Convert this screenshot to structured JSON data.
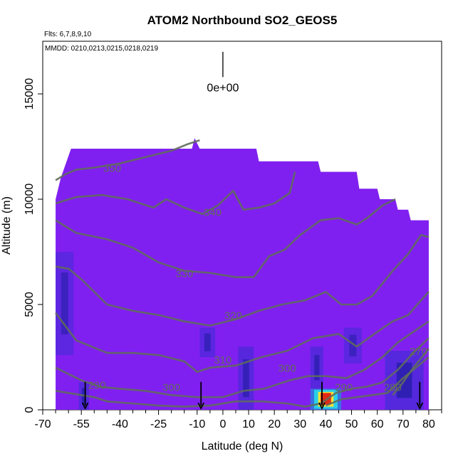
{
  "chart_data": {
    "type": "heatmap",
    "title": "ATOM2 Northbound SO2_GEOS5",
    "flights_note": "Flts: 6,7,8,9,10",
    "dates_note": "MMDD: 0210,0213,0215,0218,0219",
    "xlabel": "Latitude (deg N)",
    "ylabel": "Altitude (m)",
    "xlim": [
      -70,
      85
    ],
    "ylim": [
      0,
      17500
    ],
    "x_ticks": [
      -70,
      -55,
      -40,
      -25,
      -10,
      0,
      10,
      20,
      30,
      40,
      50,
      60,
      70,
      80
    ],
    "x_tick_labels": [
      "-70",
      "-55",
      "-40",
      "-25",
      "-10",
      "0",
      "10",
      "20",
      "30",
      "40",
      "50",
      "60",
      "70",
      "80"
    ],
    "x_minor_ticks": [
      -65,
      -60,
      -50,
      -45,
      -35,
      -30,
      -20,
      -15,
      -5,
      5,
      15,
      25,
      35,
      45,
      55,
      65,
      75,
      85
    ],
    "y_ticks": [
      0,
      5000,
      10000,
      15000
    ],
    "y_tick_labels": [
      "0",
      "5000",
      "10000",
      "15000"
    ],
    "colorbar_label": "0e+00",
    "background_color": "#8020f0",
    "data_top_profile": [
      {
        "lat": -65,
        "alt": 10000
      },
      {
        "lat": -63,
        "alt": 11000
      },
      {
        "lat": -61,
        "alt": 11700
      },
      {
        "lat": -59,
        "alt": 12400
      },
      {
        "lat": -24,
        "alt": 12400
      },
      {
        "lat": -12,
        "alt": 12400
      },
      {
        "lat": -11,
        "alt": 12900
      },
      {
        "lat": -9,
        "alt": 12400
      },
      {
        "lat": 13,
        "alt": 12400
      },
      {
        "lat": 14,
        "alt": 11800
      },
      {
        "lat": 37,
        "alt": 11800
      },
      {
        "lat": 38,
        "alt": 11300
      },
      {
        "lat": 52,
        "alt": 11300
      },
      {
        "lat": 53,
        "alt": 10500
      },
      {
        "lat": 60,
        "alt": 10500
      },
      {
        "lat": 61,
        "alt": 10000
      },
      {
        "lat": 67,
        "alt": 10000
      },
      {
        "lat": 68,
        "alt": 9500
      },
      {
        "lat": 72,
        "alt": 9500
      },
      {
        "lat": 73,
        "alt": 9000
      },
      {
        "lat": 80,
        "alt": 9000
      }
    ],
    "hotspots": [
      {
        "lat": [
          34,
          46
        ],
        "alt": [
          0,
          1000
        ],
        "intensity": 1.0
      },
      {
        "lat": [
          -56,
          -52
        ],
        "alt": [
          0,
          1300
        ],
        "intensity": 0.35
      },
      {
        "lat": [
          6,
          12
        ],
        "alt": [
          0,
          3000
        ],
        "intensity": 0.3
      },
      {
        "lat": [
          -9,
          -3
        ],
        "alt": [
          2500,
          3900
        ],
        "intensity": 0.25
      },
      {
        "lat": [
          34,
          39
        ],
        "alt": [
          1000,
          3000
        ],
        "intensity": 0.3
      },
      {
        "lat": [
          63,
          78
        ],
        "alt": [
          0,
          2800
        ],
        "intensity": 0.35
      },
      {
        "lat": [
          -65,
          -58
        ],
        "alt": [
          2600,
          7500
        ],
        "intensity": 0.2
      },
      {
        "lat": [
          47,
          54
        ],
        "alt": [
          2200,
          3900
        ],
        "intensity": 0.2
      }
    ],
    "contour_lines": [
      {
        "level": 350,
        "points": [
          [
            -65,
            10900
          ],
          [
            -61,
            11200
          ],
          [
            -57,
            11400
          ],
          [
            -50,
            11500
          ],
          [
            -40,
            11700
          ],
          [
            -30,
            12000
          ],
          [
            -20,
            12300
          ],
          [
            -14,
            12600
          ],
          [
            -9,
            12800
          ]
        ]
      },
      {
        "level": 340,
        "points": [
          [
            -65,
            9800
          ],
          [
            -57,
            10100
          ],
          [
            -47,
            10200
          ],
          [
            -37,
            10000
          ],
          [
            -27,
            9600
          ],
          [
            -22,
            10000
          ],
          [
            -15,
            9600
          ],
          [
            -8,
            9300
          ],
          [
            -2,
            9700
          ],
          [
            4,
            10400
          ],
          [
            8,
            9500
          ],
          [
            14,
            9600
          ],
          [
            20,
            9800
          ],
          [
            26,
            10300
          ],
          [
            28,
            11300
          ]
        ]
      },
      {
        "level": 330,
        "points": [
          [
            -65,
            9000
          ],
          [
            -57,
            8400
          ],
          [
            -45,
            8100
          ],
          [
            -35,
            7700
          ],
          [
            -25,
            7000
          ],
          [
            -15,
            6600
          ],
          [
            -5,
            6500
          ],
          [
            5,
            6300
          ],
          [
            12,
            6300
          ],
          [
            18,
            7300
          ],
          [
            24,
            7600
          ],
          [
            30,
            8300
          ],
          [
            38,
            9000
          ],
          [
            45,
            9100
          ],
          [
            52,
            8800
          ],
          [
            56,
            9100
          ],
          [
            62,
            9700
          ],
          [
            67,
            10000
          ]
        ]
      },
      {
        "level": 320,
        "points": [
          [
            -65,
            6800
          ],
          [
            -60,
            6700
          ],
          [
            -55,
            6200
          ],
          [
            -45,
            5000
          ],
          [
            -35,
            4700
          ],
          [
            -25,
            4500
          ],
          [
            -15,
            4200
          ],
          [
            -5,
            4000
          ],
          [
            5,
            4300
          ],
          [
            14,
            4700
          ],
          [
            23,
            5000
          ],
          [
            32,
            5200
          ],
          [
            40,
            5600
          ],
          [
            46,
            5000
          ],
          [
            52,
            5000
          ],
          [
            58,
            5400
          ],
          [
            66,
            6600
          ],
          [
            72,
            7400
          ],
          [
            77,
            8300
          ],
          [
            80,
            8200
          ]
        ]
      },
      {
        "level": 310,
        "points": [
          [
            -65,
            4600
          ],
          [
            -57,
            3300
          ],
          [
            -45,
            2700
          ],
          [
            -35,
            2700
          ],
          [
            -25,
            2600
          ],
          [
            -15,
            2300
          ],
          [
            -10,
            1800
          ],
          [
            -5,
            2000
          ],
          [
            5,
            2100
          ],
          [
            15,
            2500
          ],
          [
            25,
            2800
          ],
          [
            35,
            3400
          ],
          [
            45,
            3600
          ],
          [
            52,
            3000
          ],
          [
            60,
            3700
          ],
          [
            66,
            4200
          ],
          [
            72,
            4500
          ],
          [
            77,
            5200
          ],
          [
            80,
            5600
          ]
        ]
      },
      {
        "level": 300,
        "points": [
          [
            -65,
            2000
          ],
          [
            -60,
            1700
          ],
          [
            -55,
            1400
          ],
          [
            -48,
            1100
          ],
          [
            -40,
            1000
          ],
          [
            -30,
            900
          ],
          [
            -20,
            700
          ],
          [
            -10,
            600
          ],
          [
            0,
            600
          ],
          [
            8,
            900
          ],
          [
            16,
            1000
          ],
          [
            26,
            1400
          ],
          [
            33,
            1600
          ],
          [
            40,
            1600
          ],
          [
            48,
            1500
          ],
          [
            55,
            1900
          ],
          [
            62,
            2500
          ],
          [
            68,
            3200
          ],
          [
            74,
            3700
          ],
          [
            80,
            4200
          ]
        ]
      },
      {
        "level": 290,
        "points": [
          [
            -65,
            900
          ],
          [
            -60,
            800
          ],
          [
            -55,
            700
          ],
          [
            -50,
            600
          ],
          [
            -45,
            400
          ],
          [
            -35,
            300
          ],
          [
            -25,
            200
          ],
          [
            -15,
            150
          ],
          [
            -5,
            200
          ],
          [
            5,
            400
          ],
          [
            15,
            400
          ],
          [
            25,
            300
          ],
          [
            32,
            150
          ],
          [
            38,
            300
          ],
          [
            44,
            800
          ],
          [
            50,
            1000
          ],
          [
            56,
            1100
          ],
          [
            62,
            1300
          ],
          [
            68,
            1900
          ],
          [
            74,
            2700
          ],
          [
            80,
            3400
          ]
        ]
      },
      {
        "level": 280,
        "points": [
          [
            40,
            200
          ],
          [
            46,
            500
          ],
          [
            52,
            600
          ],
          [
            58,
            700
          ],
          [
            64,
            800
          ],
          [
            70,
            1500
          ],
          [
            76,
            2100
          ],
          [
            80,
            2500
          ]
        ]
      },
      {
        "level": 270,
        "points": [
          [
            66,
            700
          ],
          [
            70,
            1300
          ],
          [
            74,
            2000
          ],
          [
            78,
            2600
          ],
          [
            80,
            2900
          ]
        ]
      }
    ],
    "contour_label_positions": [
      {
        "level": "350",
        "lat": -43,
        "alt": 11300
      },
      {
        "level": "340",
        "lat": -4,
        "alt": 9200
      },
      {
        "level": "330",
        "lat": -15,
        "alt": 6300
      },
      {
        "level": "320",
        "lat": 4,
        "alt": 4300
      },
      {
        "level": "310",
        "lat": 0,
        "alt": 2200
      },
      {
        "level": "300",
        "lat": 25,
        "alt": 1800
      },
      {
        "level": "300",
        "lat": -20,
        "alt": 900
      },
      {
        "level": "290",
        "lat": -49,
        "alt": 1000
      },
      {
        "level": "290",
        "lat": 47,
        "alt": 900
      },
      {
        "level": "280",
        "lat": 66,
        "alt": 900
      },
      {
        "level": "270",
        "lat": 76,
        "alt": 2600
      }
    ],
    "arrows": [
      {
        "lat": -53.5,
        "alt_top": 650
      },
      {
        "lat": -8.5,
        "alt_top": 650
      },
      {
        "lat": 38.5,
        "alt_top": 650
      },
      {
        "lat": 76.5,
        "alt_top": 650
      }
    ],
    "colorbar_marker": {
      "lat": 0,
      "alt_bottom": 15800,
      "alt_top": 17000
    }
  }
}
